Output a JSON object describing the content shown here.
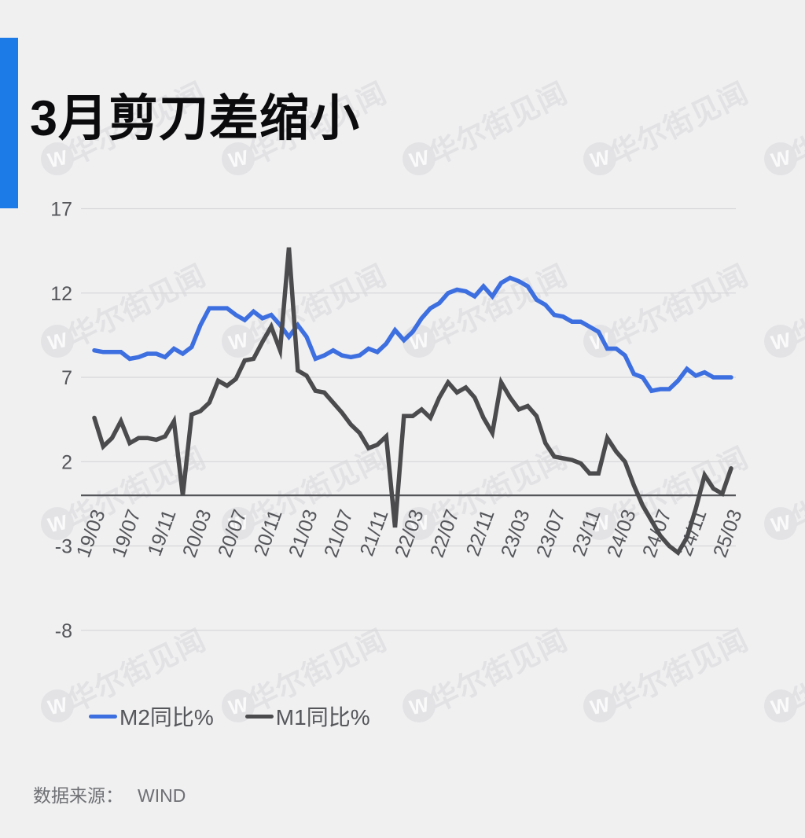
{
  "title": "3月剪刀差缩小",
  "watermark": {
    "text": "华尔街见闻",
    "logo_letter": "W"
  },
  "accent_color": "#1D7BE8",
  "legend": {
    "items": [
      {
        "label": "M2同比%",
        "color": "#3D6FE0"
      },
      {
        "label": "M1同比%",
        "color": "#4B4B4E"
      }
    ]
  },
  "source": {
    "label": "数据来源：",
    "value": "WIND"
  },
  "chart_data": {
    "type": "line",
    "title": "3月剪刀差缩小",
    "xlabel": "",
    "ylabel": "",
    "ylim": [
      -8,
      17
    ],
    "grid": true,
    "zero_axis": true,
    "legend_position": "bottom-left",
    "y_ticks": [
      17,
      12,
      7,
      2,
      -3,
      -8
    ],
    "x_start": "19/03",
    "x_end": "25/03",
    "x_interval_months": 1,
    "x_tick_labels": [
      "19/03",
      "19/07",
      "19/11",
      "20/03",
      "20/07",
      "20/11",
      "21/03",
      "21/07",
      "21/11",
      "22/03",
      "22/07",
      "22/11",
      "23/03",
      "23/07",
      "23/11",
      "24/03",
      "24/07",
      "24/11",
      "25/03"
    ],
    "series": [
      {
        "name": "M2同比%",
        "color": "#3D6FE0",
        "values": [
          8.6,
          8.5,
          8.5,
          8.5,
          8.1,
          8.2,
          8.4,
          8.4,
          8.2,
          8.7,
          8.4,
          8.8,
          10.1,
          11.1,
          11.1,
          11.1,
          10.7,
          10.4,
          10.9,
          10.5,
          10.7,
          10.1,
          9.4,
          10.1,
          9.4,
          8.1,
          8.3,
          8.6,
          8.3,
          8.2,
          8.3,
          8.7,
          8.5,
          9.0,
          9.8,
          9.2,
          9.7,
          10.5,
          11.1,
          11.4,
          12.0,
          12.2,
          12.1,
          11.8,
          12.4,
          11.8,
          12.6,
          12.9,
          12.7,
          12.4,
          11.6,
          11.3,
          10.7,
          10.6,
          10.3,
          10.3,
          10.0,
          9.7,
          8.7,
          8.7,
          8.3,
          7.2,
          7.0,
          6.2,
          6.3,
          6.3,
          6.8,
          7.5,
          7.1,
          7.3,
          7.0,
          7.0,
          7.0
        ]
      },
      {
        "name": "M1同比%",
        "color": "#4B4B4E",
        "values": [
          4.6,
          2.9,
          3.4,
          4.4,
          3.1,
          3.4,
          3.4,
          3.3,
          3.5,
          4.4,
          0.0,
          4.8,
          5.0,
          5.5,
          6.8,
          6.5,
          6.9,
          8.0,
          8.1,
          9.1,
          10.0,
          8.6,
          14.7,
          7.4,
          7.1,
          6.2,
          6.1,
          5.5,
          4.9,
          4.2,
          3.7,
          2.8,
          3.0,
          3.5,
          -1.9,
          4.7,
          4.7,
          5.1,
          4.6,
          5.8,
          6.7,
          6.1,
          6.4,
          5.8,
          4.6,
          3.7,
          6.7,
          5.8,
          5.1,
          5.3,
          4.7,
          3.1,
          2.3,
          2.2,
          2.1,
          1.9,
          1.3,
          1.3,
          3.4,
          2.6,
          2.0,
          0.6,
          -0.6,
          -1.5,
          -2.4,
          -3.0,
          -3.4,
          -2.5,
          -0.8,
          1.2,
          0.4,
          0.1,
          1.6
        ]
      }
    ]
  }
}
